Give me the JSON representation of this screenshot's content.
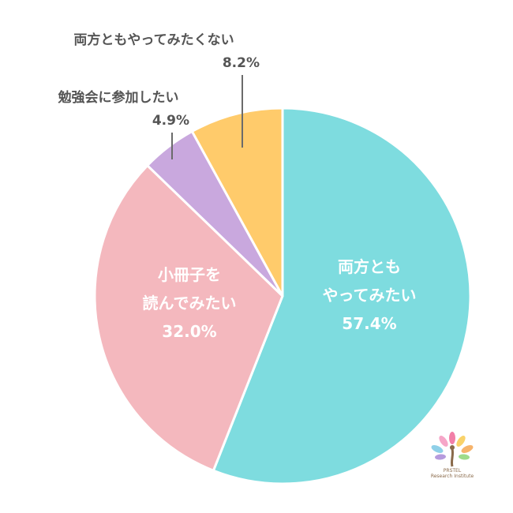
{
  "chart_data": {
    "type": "pie",
    "start_angle_deg": 0,
    "direction": "clockwise",
    "slices": [
      {
        "label_lines": [
          "両方とも",
          "やってみたい"
        ],
        "value": 57.4,
        "value_text": "57.4%",
        "color": "#7EDCDF",
        "label_position": "inside"
      },
      {
        "label_lines": [
          "小冊子を",
          "読んでみたい"
        ],
        "value": 32.0,
        "value_text": "32.0%",
        "color": "#F4B8BE",
        "label_position": "inside"
      },
      {
        "label_lines": [
          "勉強会に参加したい"
        ],
        "value": 4.9,
        "value_text": "4.9%",
        "color": "#C9A8DE",
        "label_position": "outside"
      },
      {
        "label_lines": [
          "両方ともやってみたくない"
        ],
        "value": 8.2,
        "value_text": "8.2%",
        "color": "#FFCB6B",
        "label_position": "outside"
      }
    ]
  },
  "logo": {
    "line1": "PRSTEL",
    "line2": "Research Institute"
  }
}
